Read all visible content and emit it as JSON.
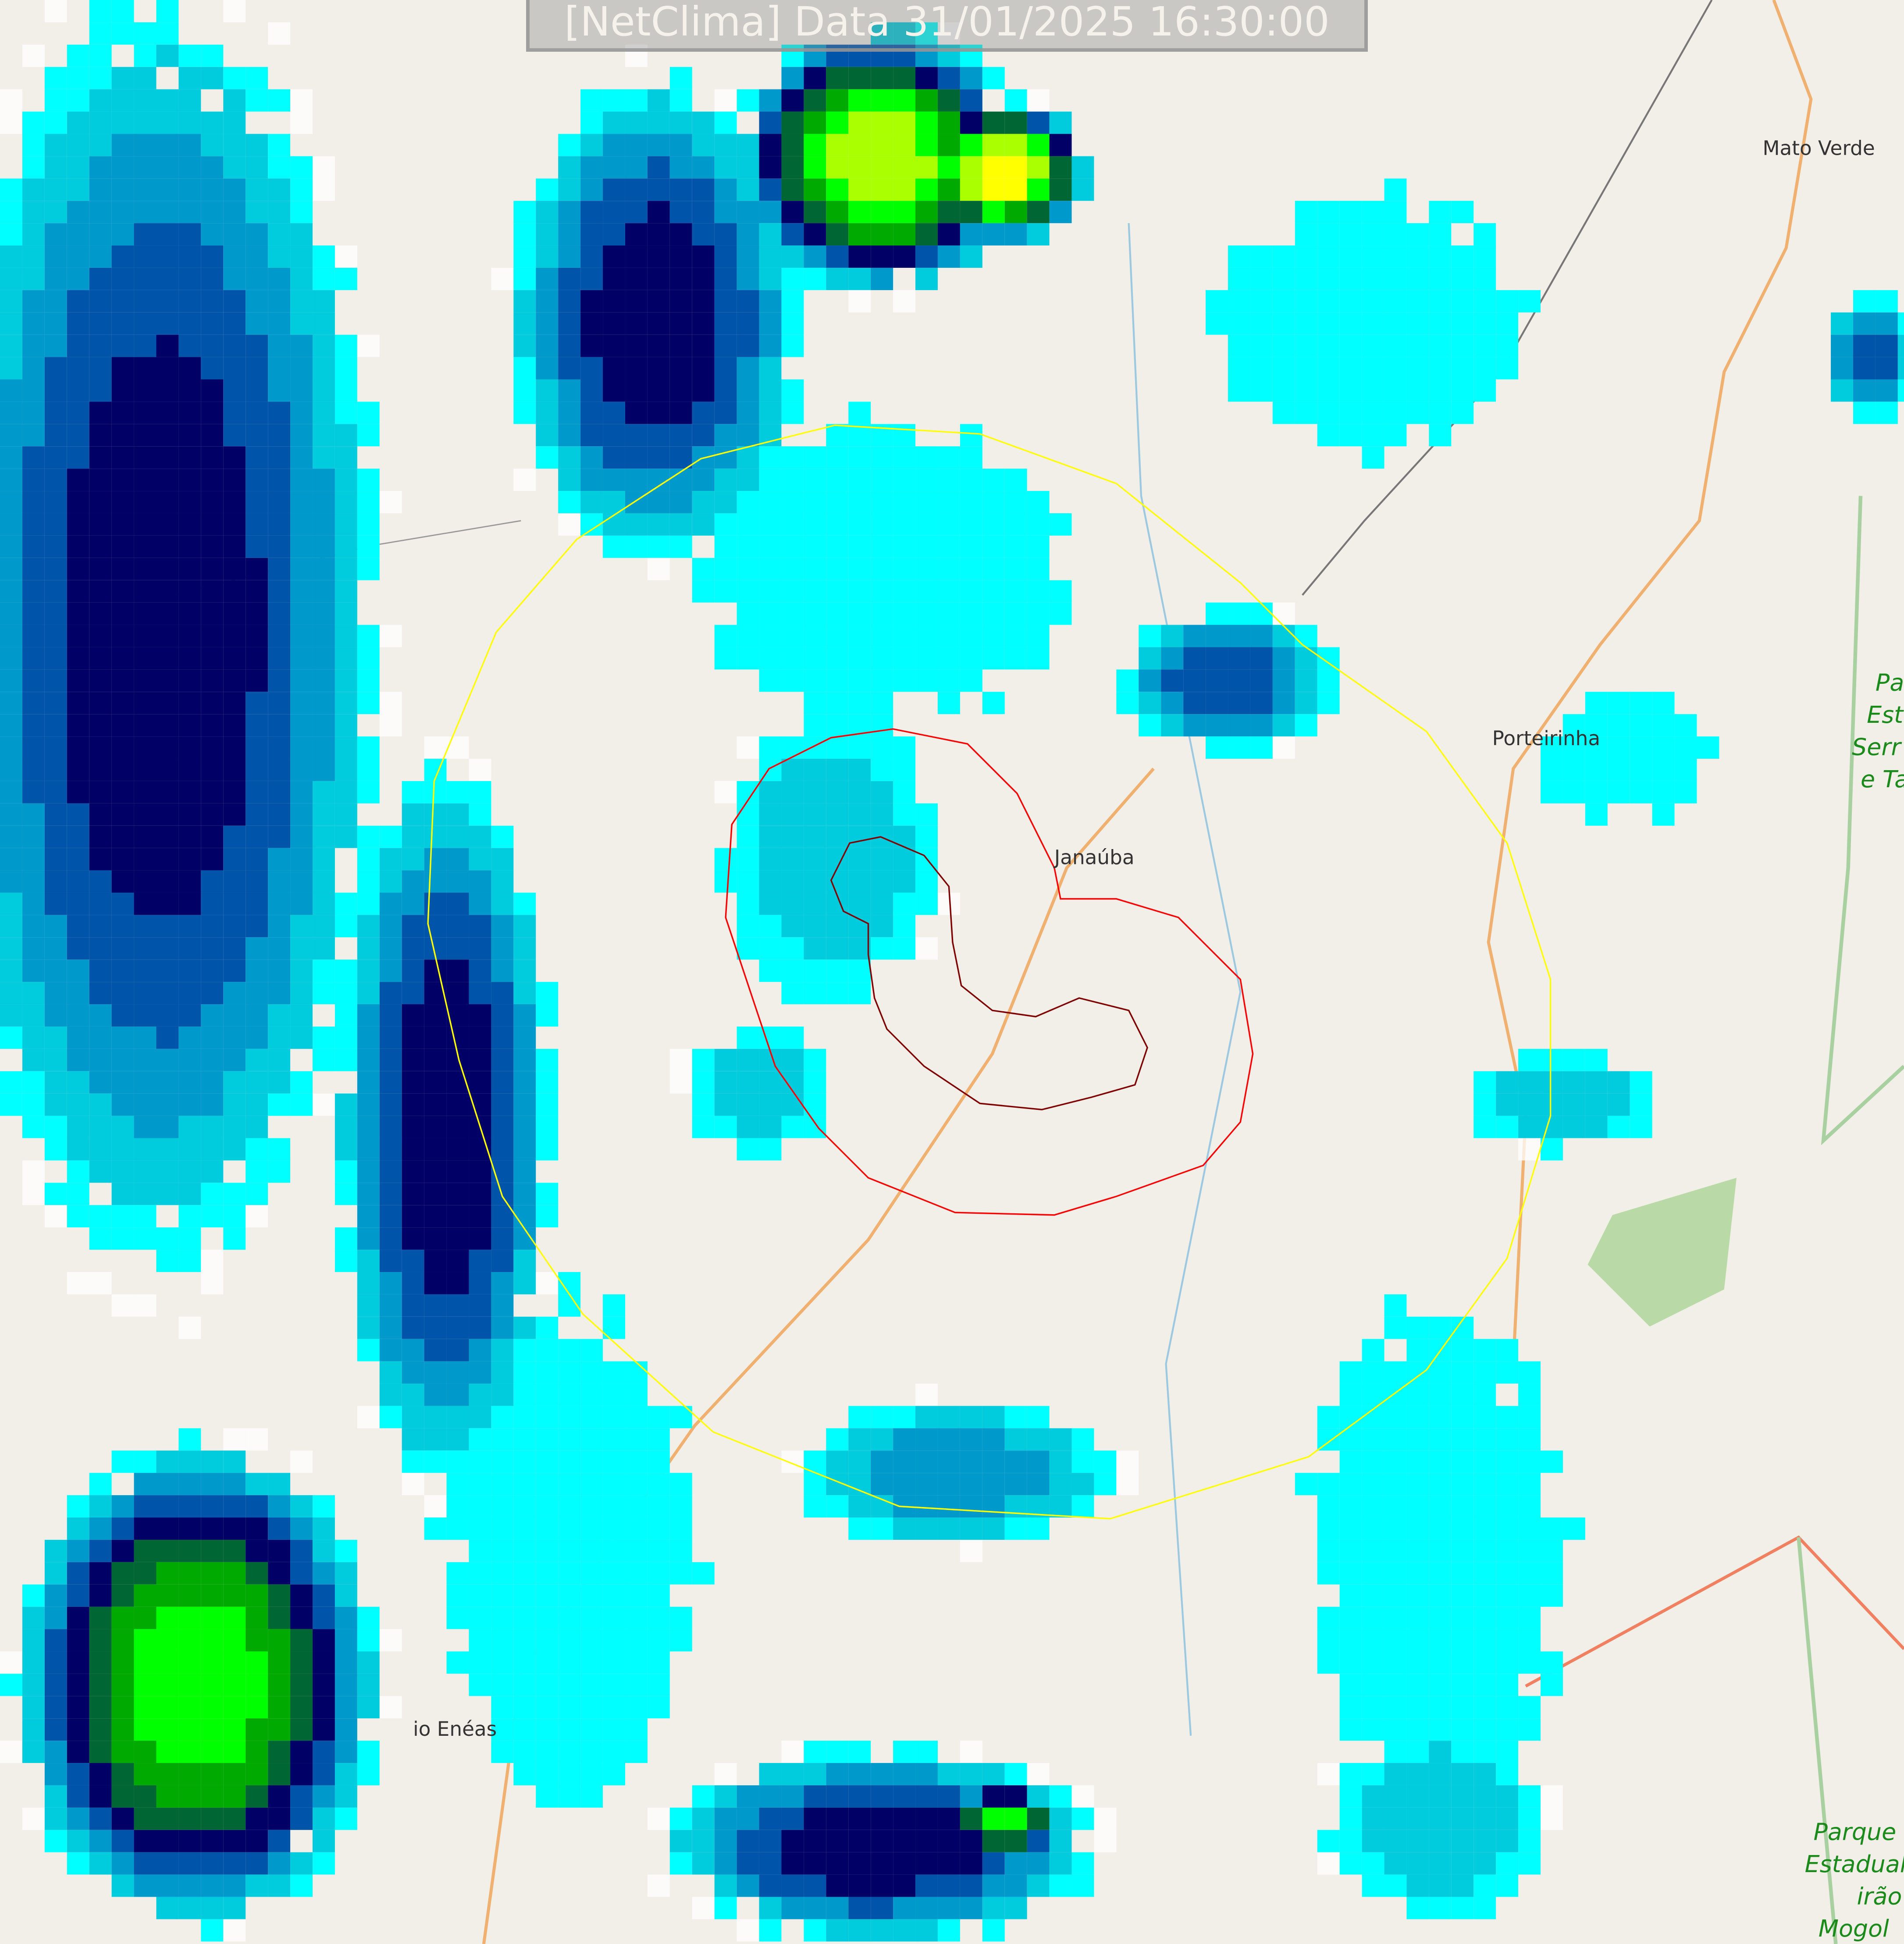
{
  "title": "[NetClima] Data 31/01/2025 16:30:00",
  "places": [
    {
      "name": "Mato Verde"
    },
    {
      "name": "Porteirinha"
    },
    {
      "name": "Janaúba"
    },
    {
      "name": "io Enéas"
    }
  ],
  "parks": [
    {
      "lines": [
        "Pa",
        "Est",
        "Serr",
        "e Ta"
      ]
    },
    {
      "lines": [
        "Parque",
        "Estadual",
        "irão",
        "Mogol"
      ]
    }
  ],
  "overlays": {
    "outer_ring_color": "#ffff00",
    "middle_ring_color": "#ff0000",
    "inner_ring_color": "#800000"
  },
  "radar_colors": [
    "#ffffff",
    "#00ffff",
    "#00ccdd",
    "#0099cc",
    "#0055aa",
    "#000066",
    "#006633",
    "#00aa00",
    "#00ff00",
    "#aaff00",
    "#ffff00"
  ]
}
